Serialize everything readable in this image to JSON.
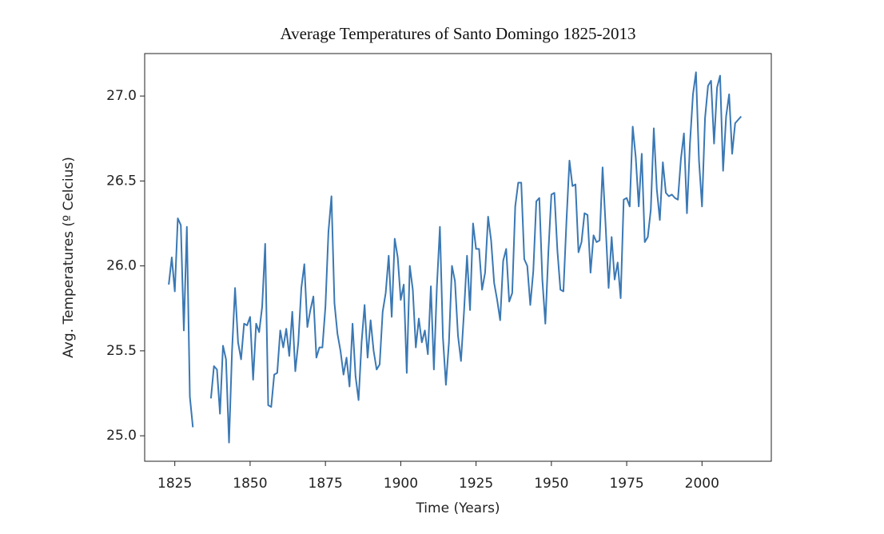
{
  "chart_data": {
    "type": "line",
    "title": "Average Temperatures of Santo Domingo 1825-2013",
    "x_label": "Time (Years)",
    "y_label": "Avg. Temperatures (º Celcius)",
    "x": [
      1823,
      1824,
      1825,
      1826,
      1827,
      1828,
      1829,
      1830,
      1831,
      1832,
      1833,
      1834,
      1835,
      1836,
      1837,
      1838,
      1839,
      1840,
      1841,
      1842,
      1843,
      1844,
      1845,
      1846,
      1847,
      1848,
      1849,
      1850,
      1851,
      1852,
      1853,
      1854,
      1855,
      1856,
      1857,
      1858,
      1859,
      1860,
      1861,
      1862,
      1863,
      1864,
      1865,
      1866,
      1867,
      1868,
      1869,
      1870,
      1871,
      1872,
      1873,
      1874,
      1875,
      1876,
      1877,
      1878,
      1879,
      1880,
      1881,
      1882,
      1883,
      1884,
      1885,
      1886,
      1887,
      1888,
      1889,
      1890,
      1891,
      1892,
      1893,
      1894,
      1895,
      1896,
      1897,
      1898,
      1899,
      1900,
      1901,
      1902,
      1903,
      1904,
      1905,
      1906,
      1907,
      1908,
      1909,
      1910,
      1911,
      1912,
      1913,
      1914,
      1915,
      1916,
      1917,
      1918,
      1919,
      1920,
      1921,
      1922,
      1923,
      1924,
      1925,
      1926,
      1927,
      1928,
      1929,
      1930,
      1931,
      1932,
      1933,
      1934,
      1935,
      1936,
      1937,
      1938,
      1939,
      1940,
      1941,
      1942,
      1943,
      1944,
      1945,
      1946,
      1947,
      1948,
      1949,
      1950,
      1951,
      1952,
      1953,
      1954,
      1955,
      1956,
      1957,
      1958,
      1959,
      1960,
      1961,
      1962,
      1963,
      1964,
      1965,
      1966,
      1967,
      1968,
      1969,
      1970,
      1971,
      1972,
      1973,
      1974,
      1975,
      1976,
      1977,
      1978,
      1979,
      1980,
      1981,
      1982,
      1983,
      1984,
      1985,
      1986,
      1987,
      1988,
      1989,
      1990,
      1991,
      1992,
      1993,
      1994,
      1995,
      1996,
      1997,
      1998,
      1999,
      2000,
      2001,
      2002,
      2003,
      2004,
      2005,
      2006,
      2007,
      2008,
      2009,
      2010,
      2011,
      2012,
      2013
    ],
    "values": [
      25.89,
      26.05,
      25.85,
      26.28,
      26.24,
      25.62,
      26.23,
      25.23,
      25.05,
      null,
      null,
      null,
      null,
      null,
      25.22,
      25.41,
      25.39,
      25.13,
      25.53,
      25.45,
      24.96,
      25.5,
      25.87,
      25.55,
      25.45,
      25.66,
      25.65,
      25.7,
      25.33,
      25.66,
      25.61,
      25.76,
      26.13,
      25.18,
      25.17,
      25.36,
      25.37,
      25.62,
      25.52,
      25.63,
      25.47,
      25.73,
      25.38,
      25.55,
      25.87,
      26.01,
      25.64,
      25.74,
      25.82,
      25.46,
      25.52,
      25.52,
      25.76,
      26.2,
      26.41,
      25.78,
      25.6,
      25.5,
      25.36,
      25.46,
      25.29,
      25.66,
      25.35,
      25.21,
      25.55,
      25.77,
      25.46,
      25.68,
      25.5,
      25.39,
      25.42,
      25.73,
      25.84,
      26.06,
      25.7,
      26.16,
      26.05,
      25.8,
      25.89,
      25.37,
      26.0,
      25.86,
      25.52,
      25.69,
      25.55,
      25.62,
      25.48,
      25.88,
      25.39,
      25.88,
      26.23,
      25.58,
      25.3,
      25.55,
      26.0,
      25.91,
      25.59,
      25.44,
      25.73,
      26.06,
      25.74,
      26.25,
      26.1,
      26.1,
      25.86,
      25.96,
      26.29,
      26.15,
      25.9,
      25.8,
      25.68,
      26.03,
      26.1,
      25.79,
      25.84,
      26.35,
      26.49,
      26.49,
      26.04,
      26.0,
      25.77,
      25.97,
      26.38,
      26.4,
      25.92,
      25.66,
      26.08,
      26.42,
      26.43,
      26.09,
      25.86,
      25.85,
      26.26,
      26.62,
      26.47,
      26.48,
      26.08,
      26.14,
      26.31,
      26.3,
      25.96,
      26.18,
      26.14,
      26.15,
      26.58,
      26.24,
      25.87,
      26.17,
      25.92,
      26.02,
      25.81,
      26.39,
      26.4,
      26.35,
      26.82,
      26.64,
      26.35,
      26.66,
      26.14,
      26.17,
      26.33,
      26.81,
      26.45,
      26.27,
      26.61,
      26.43,
      26.41,
      26.42,
      26.4,
      26.39,
      26.63,
      26.78,
      26.31,
      26.72,
      27.01,
      27.14,
      26.62,
      26.35,
      26.87,
      27.06,
      27.09,
      26.72,
      27.05,
      27.12,
      26.56,
      26.88,
      27.01,
      26.66,
      26.84,
      26.86,
      26.88
    ],
    "color": "#3a78b4",
    "xlim": [
      1815,
      2023
    ],
    "ylim": [
      24.85,
      27.25
    ],
    "xticks": [
      1825,
      1850,
      1875,
      1900,
      1925,
      1950,
      1975,
      2000
    ],
    "yticks": [
      {
        "value": 25,
        "label": "25.0"
      },
      25.5,
      {
        "value": 26,
        "label": "26.0"
      },
      26.5,
      {
        "value": 27,
        "label": "27.0"
      }
    ],
    "grid": false
  }
}
